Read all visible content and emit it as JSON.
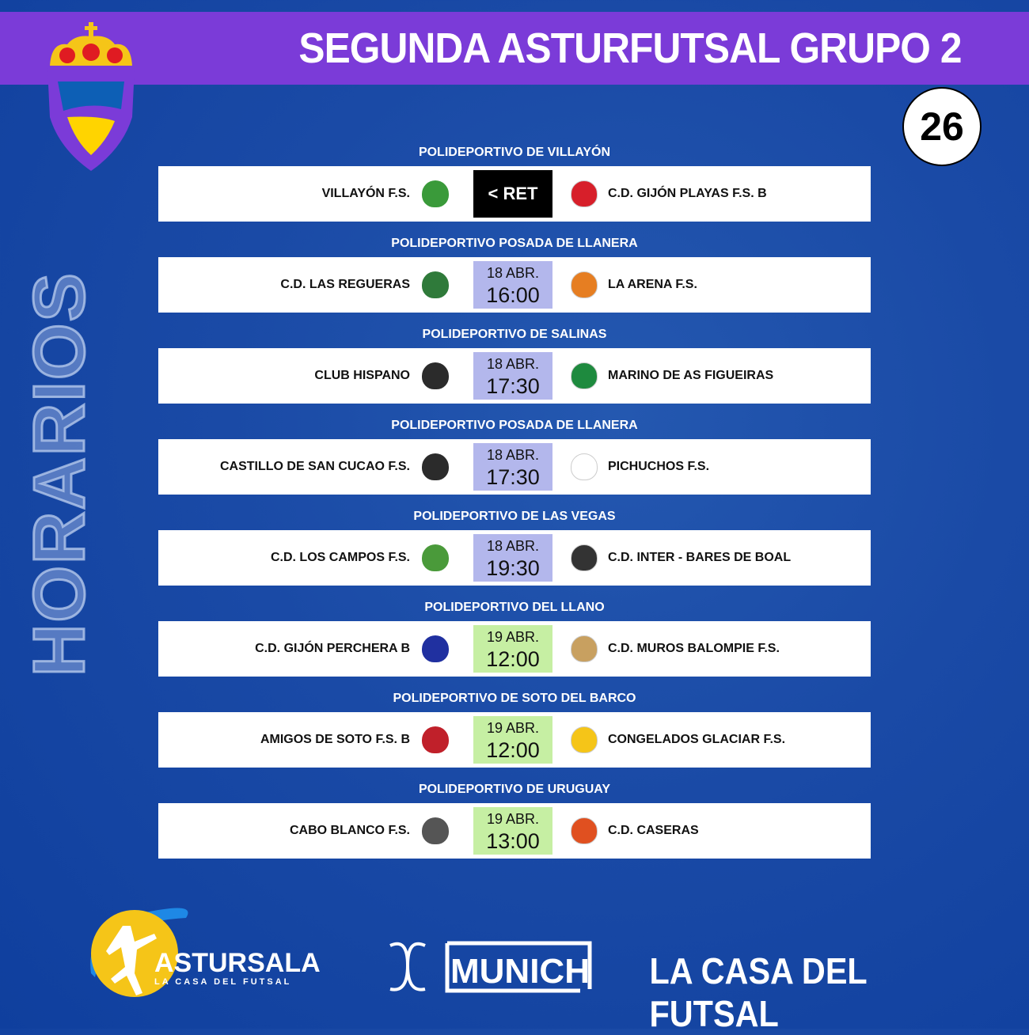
{
  "header": {
    "title": "SEGUNDA ASTURFUTSAL GRUPO 2",
    "round": "26",
    "side_label": "HORARIOS"
  },
  "colors": {
    "band": "#7b3bd8",
    "date_18": "#b3b7ec",
    "date_19": "#c6efa3",
    "ret_bg": "#000000"
  },
  "matches": [
    {
      "venue": "POLIDEPORTIVO DE VILLAYÓN",
      "home": "VILLAYÓN F.S.",
      "away": "C.D. GIJÓN PLAYAS F.S. B",
      "status": "< RET"
    },
    {
      "venue": "POLIDEPORTIVO POSADA DE LLANERA",
      "home": "C.D. LAS REGUERAS",
      "away": "LA ARENA F.S.",
      "date": "18 ABR.",
      "time": "16:00"
    },
    {
      "venue": "POLIDEPORTIVO DE SALINAS",
      "home": "CLUB HISPANO",
      "away": "MARINO DE AS FIGUEIRAS",
      "date": "18 ABR.",
      "time": "17:30"
    },
    {
      "venue": "POLIDEPORTIVO POSADA DE LLANERA",
      "home": "CASTILLO DE SAN CUCAO F.S.",
      "away": "PICHUCHOS F.S.",
      "date": "18 ABR.",
      "time": "17:30"
    },
    {
      "venue": "POLIDEPORTIVO DE LAS VEGAS",
      "home": "C.D. LOS CAMPOS F.S.",
      "away": "C.D. INTER - BARES DE BOAL",
      "date": "18 ABR.",
      "time": "19:30"
    },
    {
      "venue": "POLIDEPORTIVO DEL LLANO",
      "home": "C.D. GIJÓN PERCHERA B",
      "away": "C.D. MUROS BALOMPIE F.S.",
      "date": "19 ABR.",
      "time": "12:00"
    },
    {
      "venue": "POLIDEPORTIVO DE SOTO DEL BARCO",
      "home": "AMIGOS DE SOTO F.S. B",
      "away": "CONGELADOS GLACIAR F.S.",
      "date": "19 ABR.",
      "time": "12:00"
    },
    {
      "venue": "POLIDEPORTIVO DE URUGUAY",
      "home": "CABO BLANCO F.S.",
      "away": "C.D. CASERAS",
      "date": "19 ABR.",
      "time": "13:00"
    }
  ],
  "footer": {
    "astursala": "ASTURSALA",
    "astursala_tag": "LA CASA DEL FUTSAL",
    "munich": "MUNICH",
    "slogan": "LA CASA DEL FUTSAL"
  }
}
